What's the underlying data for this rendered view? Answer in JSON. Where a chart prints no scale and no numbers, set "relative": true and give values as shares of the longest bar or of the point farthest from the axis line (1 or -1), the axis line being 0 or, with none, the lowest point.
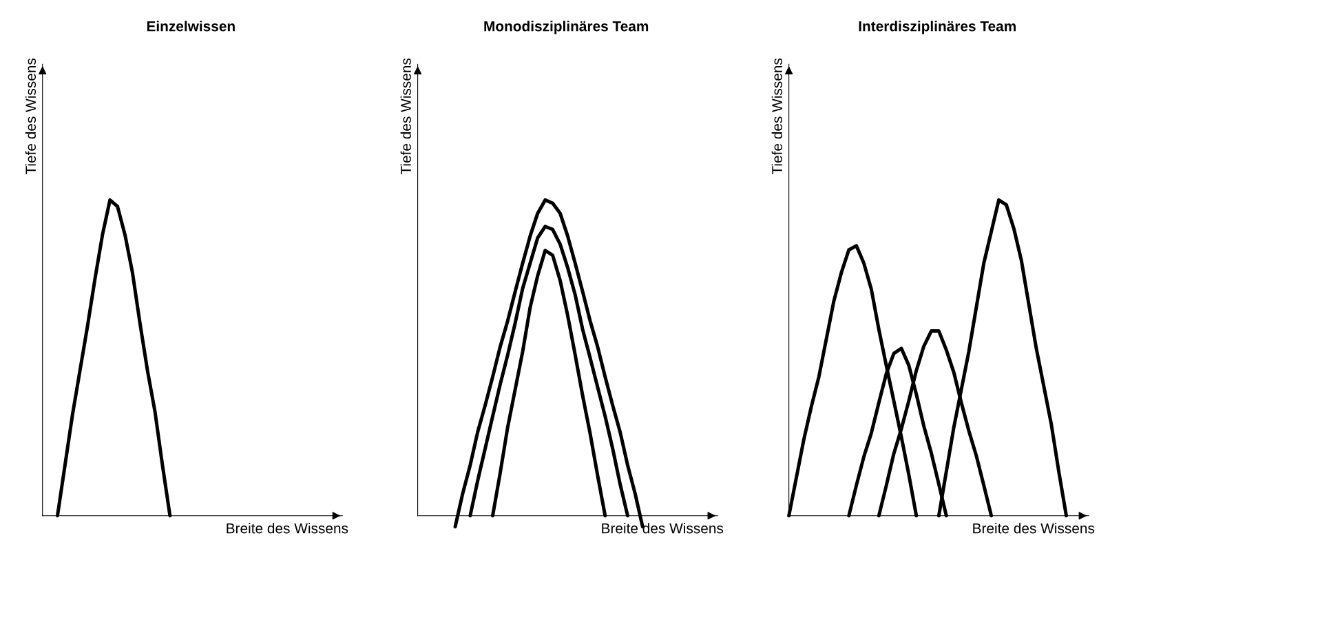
{
  "chart_data": [
    {
      "type": "line",
      "title": "Einzelwissen",
      "xlabel": "Breite des Wissens",
      "ylabel": "Tiefe des Wissens",
      "relative": true,
      "categories": [
        null,
        null,
        null,
        null,
        null,
        null,
        null,
        null,
        null,
        null,
        null,
        null,
        null,
        null,
        null,
        null,
        null,
        null,
        null,
        null,
        null,
        null,
        null,
        null,
        null,
        null,
        null,
        null,
        null,
        null,
        null,
        null,
        null,
        null,
        null,
        null,
        null,
        null,
        null,
        null,
        null
      ],
      "series": [
        {
          "color": "#000000",
          "values": [
            null,
            null,
            0,
            0.16,
            0.32,
            0.46,
            0.6,
            0.75,
            0.89,
            1,
            0.98,
            0.89,
            0.77,
            0.61,
            0.46,
            0.33,
            0.16,
            0,
            null,
            null,
            null,
            null,
            null,
            null,
            null,
            null,
            null,
            null,
            null,
            null,
            null,
            null,
            null,
            null,
            null,
            null,
            null,
            null,
            null,
            null,
            null
          ]
        }
      ]
    },
    {
      "type": "line",
      "title": "Monodisziplinäres Team",
      "xlabel": "Breite des Wissens",
      "ylabel": "Tiefe des Wissens",
      "relative": true,
      "categories": [
        null,
        null,
        null,
        null,
        null,
        null,
        null,
        null,
        null,
        null,
        null,
        null,
        null,
        null,
        null,
        null,
        null,
        null,
        null,
        null,
        null,
        null,
        null,
        null,
        null,
        null,
        null,
        null,
        null,
        null,
        null,
        null,
        null,
        null,
        null,
        null,
        null,
        null,
        null,
        null,
        null
      ],
      "series": [
        {
          "color": "#000000",
          "values": [
            null,
            null,
            null,
            null,
            null,
            -0.035,
            0.07,
            0.16,
            0.265,
            0.35,
            0.44,
            0.535,
            0.617,
            0.71,
            0.8,
            0.886,
            0.958,
            1,
            0.99,
            0.958,
            0.886,
            0.8,
            0.71,
            0.617,
            0.535,
            0.44,
            0.35,
            0.265,
            0.16,
            0.07,
            -0.035,
            null,
            null,
            null,
            null,
            null,
            null,
            null,
            null,
            null,
            null
          ]
        },
        {
          "color": "#000000",
          "values": [
            null,
            null,
            null,
            null,
            null,
            null,
            null,
            0,
            0.111,
            0.213,
            0.315,
            0.416,
            0.509,
            0.61,
            0.72,
            0.8,
            0.88,
            0.916,
            0.907,
            0.86,
            0.786,
            0.7,
            0.59,
            0.5,
            0.407,
            0.315,
            0.213,
            0.1,
            0,
            null,
            null,
            null,
            null,
            null,
            null,
            null,
            null,
            null,
            null,
            null,
            null
          ]
        },
        {
          "color": "#000000",
          "values": [
            null,
            null,
            null,
            null,
            null,
            null,
            null,
            null,
            null,
            null,
            0,
            0.135,
            0.28,
            0.4,
            0.52,
            0.66,
            0.76,
            0.84,
            0.825,
            0.745,
            0.635,
            0.51,
            0.38,
            0.26,
            0.127,
            0,
            null,
            null,
            null,
            null,
            null,
            null,
            null,
            null,
            null,
            null,
            null,
            null,
            null,
            null,
            null
          ]
        }
      ]
    },
    {
      "type": "line",
      "title": "Interdisziplinäres Team",
      "xlabel": "Breite des Wissens",
      "ylabel": "Tiefe des Wissens",
      "relative": true,
      "categories": [
        null,
        null,
        null,
        null,
        null,
        null,
        null,
        null,
        null,
        null,
        null,
        null,
        null,
        null,
        null,
        null,
        null,
        null,
        null,
        null,
        null,
        null,
        null,
        null,
        null,
        null,
        null,
        null,
        null,
        null,
        null,
        null,
        null,
        null,
        null,
        null,
        null,
        null,
        null,
        null,
        null
      ],
      "series": [
        {
          "color": "#000000",
          "values": [
            0,
            0.121,
            0.242,
            0.346,
            0.44,
            0.56,
            0.68,
            0.77,
            0.842,
            0.855,
            0.8,
            0.717,
            0.59,
            0.475,
            0.363,
            0.25,
            0.13,
            0,
            null,
            null,
            null,
            null,
            null,
            null,
            null,
            null,
            null,
            null,
            null,
            null,
            null,
            null,
            null,
            null,
            null,
            null,
            null,
            null,
            null,
            null,
            null
          ]
        },
        {
          "color": "#000000",
          "values": [
            null,
            null,
            null,
            null,
            null,
            null,
            null,
            null,
            0,
            0.096,
            0.187,
            0.262,
            0.358,
            0.45,
            0.514,
            0.53,
            0.476,
            0.385,
            0.284,
            0.198,
            0.1,
            0,
            null,
            null,
            null,
            null,
            null,
            null,
            null,
            null,
            null,
            null,
            null,
            null,
            null,
            null,
            null,
            null,
            null,
            null,
            null
          ]
        },
        {
          "color": "#000000",
          "values": [
            null,
            null,
            null,
            null,
            null,
            null,
            null,
            null,
            null,
            null,
            null,
            null,
            0,
            0.096,
            0.197,
            0.275,
            0.364,
            0.46,
            0.537,
            0.585,
            0.585,
            0.525,
            0.454,
            0.358,
            0.269,
            0.19,
            0.096,
            0,
            null,
            null,
            null,
            null,
            null,
            null,
            null,
            null,
            null,
            null,
            null,
            null,
            null
          ]
        },
        {
          "color": "#000000",
          "values": [
            null,
            null,
            null,
            null,
            null,
            null,
            null,
            null,
            null,
            null,
            null,
            null,
            null,
            null,
            null,
            null,
            null,
            null,
            null,
            null,
            0,
            0.14,
            0.28,
            0.4,
            0.52,
            0.66,
            0.8,
            0.9,
            1,
            0.985,
            0.91,
            0.81,
            0.67,
            0.53,
            0.41,
            0.29,
            0.14,
            0,
            null,
            null,
            null
          ]
        }
      ]
    }
  ]
}
